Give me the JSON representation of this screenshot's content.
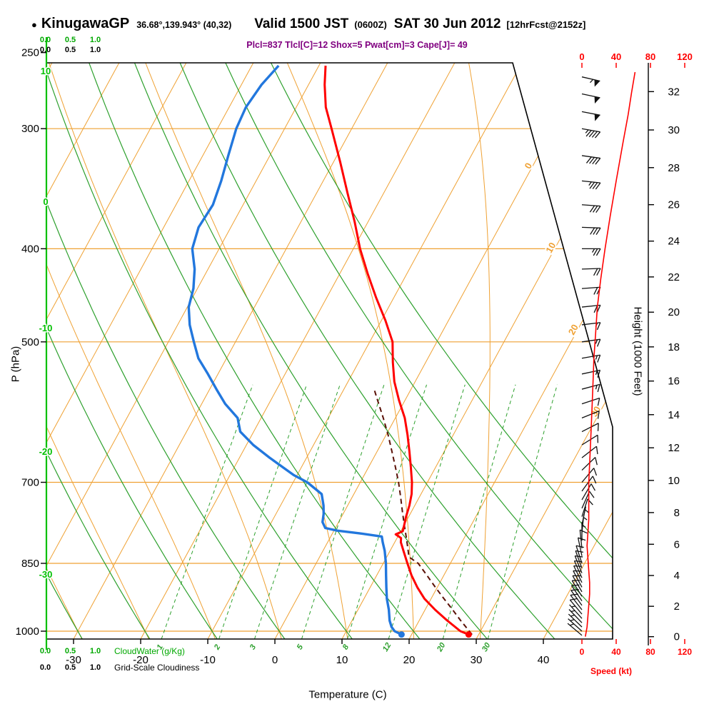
{
  "header": {
    "bullet": "●",
    "station": "KinugawaGP",
    "coords": "36.68°,139.943° (40,32)",
    "valid_prefix": "Valid 1500 JST",
    "valid_utc": "(0600Z)",
    "valid_date": "SAT 30 Jun 2012",
    "fcst": "[12hrFcst@2152z]",
    "indices": "Plcl=837 Tlcl[C]=12 Shox=5 Pwat[cm]=3 Cape[J]= 49"
  },
  "axes": {
    "pressure_label": "P (hPa)",
    "pressure_ticks": [
      250,
      300,
      400,
      500,
      700,
      850,
      1000
    ],
    "temperature_label": "Temperature (C)",
    "temperature_ticks": [
      -30,
      -20,
      -10,
      0,
      10,
      20,
      30,
      40
    ],
    "height_label": "Height (1000 Feet)",
    "height_ticks": [
      0,
      2,
      4,
      6,
      8,
      10,
      12,
      14,
      16,
      18,
      20,
      22,
      24,
      26,
      28,
      30,
      32
    ],
    "speed_label": "Speed (kt)",
    "speed_ticks": [
      0,
      40,
      80,
      120
    ],
    "cloudwater_label": "CloudWater (g/Kg)",
    "cloudiness_label": "Grid-Scale Cloudiness",
    "cloud_scale": [
      "0.0",
      "0.5",
      "1.0"
    ],
    "isotherm_exit_labels": [
      0,
      10,
      20,
      30
    ],
    "dry_adiabat_labels": [
      10,
      0,
      -10,
      -20,
      -30
    ]
  },
  "colors": {
    "grid_orange": "#efa133",
    "grid_green": "#2da02d",
    "axis_green": "#00c000",
    "temperature": "#ff0000",
    "dewpoint": "#2277dd",
    "parcel": "#5a1006",
    "wind_barbs": "#111111",
    "speed_trace": "#ff0000",
    "indices_text": "#800080"
  },
  "chart_data": {
    "type": "line",
    "subtype": "skew-t-log-p-sounding",
    "x": "temperature_C",
    "y": "pressure_hPa",
    "y_range": [
      1019,
      256
    ],
    "x_range_at_surface": [
      -35,
      47
    ],
    "grid": {
      "pressure_lines": [
        300,
        400,
        500,
        700,
        850,
        1000
      ],
      "isotherms": {
        "min": -120,
        "max": 40,
        "step": 10
      },
      "moist_adiabats": [
        -60,
        -50,
        -40,
        -30,
        -20,
        -10,
        0,
        10,
        20,
        30
      ],
      "dry_adiabats": [
        -30,
        -20,
        -10,
        0,
        10,
        20,
        30,
        40,
        50,
        60
      ],
      "mixing_ratios": [
        1,
        2,
        3,
        5,
        8,
        12,
        20,
        30
      ]
    },
    "series": [
      {
        "name": "temperature",
        "units": "C",
        "points": [
          [
            1008,
            28.5
          ],
          [
            1000,
            27.0
          ],
          [
            975,
            24.2
          ],
          [
            950,
            21.5
          ],
          [
            925,
            19.0
          ],
          [
            900,
            17.0
          ],
          [
            875,
            15.2
          ],
          [
            850,
            13.6
          ],
          [
            825,
            12.0
          ],
          [
            808,
            10.9
          ],
          [
            800,
            10.6
          ],
          [
            793,
            9.5
          ],
          [
            787,
            10.3
          ],
          [
            775,
            10.0
          ],
          [
            760,
            9.6
          ],
          [
            740,
            9.2
          ],
          [
            720,
            8.6
          ],
          [
            700,
            7.7
          ],
          [
            675,
            6.3
          ],
          [
            650,
            4.8
          ],
          [
            625,
            3.2
          ],
          [
            600,
            1.4
          ],
          [
            575,
            -0.9
          ],
          [
            550,
            -3.1
          ],
          [
            525,
            -4.9
          ],
          [
            500,
            -6.6
          ],
          [
            475,
            -9.4
          ],
          [
            450,
            -12.6
          ],
          [
            425,
            -15.8
          ],
          [
            400,
            -19.0
          ],
          [
            375,
            -22.0
          ],
          [
            350,
            -25.4
          ],
          [
            325,
            -29.0
          ],
          [
            300,
            -33.0
          ],
          [
            285,
            -35.6
          ],
          [
            270,
            -37.6
          ],
          [
            258,
            -39.0
          ]
        ]
      },
      {
        "name": "dewpoint",
        "units": "C",
        "points": [
          [
            1008,
            18.5
          ],
          [
            1000,
            17.2
          ],
          [
            990,
            16.4
          ],
          [
            975,
            15.6
          ],
          [
            950,
            14.6
          ],
          [
            925,
            13.4
          ],
          [
            900,
            12.4
          ],
          [
            875,
            11.4
          ],
          [
            850,
            10.4
          ],
          [
            825,
            9.2
          ],
          [
            808,
            8.2
          ],
          [
            797,
            7.6
          ],
          [
            791,
            4.0
          ],
          [
            786,
            0.5
          ],
          [
            781,
            -1.5
          ],
          [
            770,
            -2.4
          ],
          [
            755,
            -2.9
          ],
          [
            740,
            -3.6
          ],
          [
            720,
            -4.8
          ],
          [
            700,
            -7.9
          ],
          [
            688,
            -10.5
          ],
          [
            675,
            -12.8
          ],
          [
            660,
            -15.5
          ],
          [
            640,
            -19.0
          ],
          [
            620,
            -22.0
          ],
          [
            600,
            -23.5
          ],
          [
            580,
            -26.5
          ],
          [
            560,
            -29.0
          ],
          [
            540,
            -31.5
          ],
          [
            520,
            -34.2
          ],
          [
            500,
            -36.2
          ],
          [
            480,
            -38.2
          ],
          [
            460,
            -39.8
          ],
          [
            440,
            -40.6
          ],
          [
            420,
            -42.0
          ],
          [
            400,
            -44.0
          ],
          [
            380,
            -44.8
          ],
          [
            360,
            -44.5
          ],
          [
            340,
            -45.2
          ],
          [
            320,
            -46.2
          ],
          [
            300,
            -47.2
          ],
          [
            285,
            -47.5
          ],
          [
            270,
            -47.0
          ],
          [
            258,
            -46.0
          ]
        ]
      },
      {
        "name": "parcel",
        "units": "C",
        "style": "dashed",
        "points": [
          [
            1008,
            29.0
          ],
          [
            975,
            26.2
          ],
          [
            950,
            24.1
          ],
          [
            925,
            21.9
          ],
          [
            900,
            19.7
          ],
          [
            875,
            17.5
          ],
          [
            850,
            15.2
          ],
          [
            837,
            13.3
          ],
          [
            825,
            12.7
          ],
          [
            800,
            11.4
          ],
          [
            775,
            10.0
          ],
          [
            750,
            8.6
          ],
          [
            725,
            7.2
          ],
          [
            700,
            5.7
          ],
          [
            675,
            4.0
          ],
          [
            650,
            2.2
          ],
          [
            625,
            0.3
          ],
          [
            600,
            -1.8
          ],
          [
            575,
            -4.1
          ],
          [
            560,
            -5.5
          ]
        ]
      },
      {
        "name": "wind_speed",
        "units": "kt",
        "points": [
          [
            1013,
            4
          ],
          [
            990,
            6
          ],
          [
            965,
            7
          ],
          [
            940,
            8
          ],
          [
            915,
            9
          ],
          [
            890,
            9
          ],
          [
            865,
            8
          ],
          [
            840,
            7
          ],
          [
            815,
            6
          ],
          [
            790,
            7
          ],
          [
            765,
            8
          ],
          [
            740,
            8
          ],
          [
            715,
            8
          ],
          [
            700,
            8
          ],
          [
            670,
            9
          ],
          [
            640,
            10
          ],
          [
            610,
            11
          ],
          [
            580,
            12
          ],
          [
            550,
            13
          ],
          [
            520,
            14
          ],
          [
            490,
            16
          ],
          [
            460,
            18
          ],
          [
            430,
            22
          ],
          [
            400,
            27
          ],
          [
            370,
            33
          ],
          [
            340,
            40
          ],
          [
            310,
            48
          ],
          [
            290,
            54
          ],
          [
            275,
            58
          ],
          [
            262,
            62
          ]
        ]
      }
    ],
    "surface": {
      "temperature_C": 28.5,
      "dewpoint_C": 18.5
    },
    "winds_p_dir_spd": [
      [
        1010,
        130,
        5
      ],
      [
        1000,
        132,
        6
      ],
      [
        990,
        134,
        6
      ],
      [
        980,
        136,
        7
      ],
      [
        970,
        138,
        7
      ],
      [
        960,
        140,
        8
      ],
      [
        950,
        142,
        8
      ],
      [
        940,
        144,
        8
      ],
      [
        930,
        146,
        9
      ],
      [
        920,
        148,
        9
      ],
      [
        910,
        150,
        9
      ],
      [
        900,
        152,
        10
      ],
      [
        890,
        154,
        10
      ],
      [
        880,
        156,
        9
      ],
      [
        870,
        158,
        9
      ],
      [
        860,
        160,
        9
      ],
      [
        850,
        162,
        9
      ],
      [
        835,
        168,
        8
      ],
      [
        820,
        174,
        8
      ],
      [
        805,
        180,
        7
      ],
      [
        790,
        186,
        7
      ],
      [
        775,
        192,
        7
      ],
      [
        760,
        198,
        8
      ],
      [
        745,
        204,
        8
      ],
      [
        730,
        210,
        8
      ],
      [
        715,
        216,
        8
      ],
      [
        700,
        220,
        8
      ],
      [
        680,
        226,
        9
      ],
      [
        660,
        232,
        9
      ],
      [
        640,
        238,
        10
      ],
      [
        620,
        243,
        11
      ],
      [
        600,
        248,
        12
      ],
      [
        580,
        252,
        12
      ],
      [
        560,
        255,
        13
      ],
      [
        540,
        258,
        14
      ],
      [
        520,
        260,
        15
      ],
      [
        500,
        262,
        15
      ],
      [
        480,
        263,
        17
      ],
      [
        460,
        264,
        18
      ],
      [
        440,
        266,
        20
      ],
      [
        420,
        268,
        22
      ],
      [
        400,
        270,
        25
      ],
      [
        380,
        272,
        28
      ],
      [
        360,
        274,
        31
      ],
      [
        340,
        276,
        35
      ],
      [
        320,
        278,
        40
      ],
      [
        300,
        280,
        45
      ],
      [
        288,
        281,
        48
      ],
      [
        276,
        282,
        52
      ],
      [
        265,
        283,
        56
      ]
    ]
  }
}
